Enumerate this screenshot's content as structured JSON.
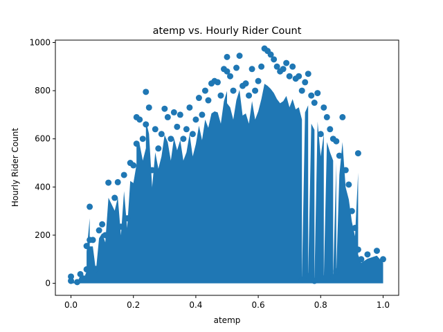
{
  "chart_data": {
    "type": "scatter",
    "title": "atemp vs. Hourly Rider Count",
    "xlabel": "atemp",
    "ylabel": "Hourly Rider Count",
    "xlim": [
      -0.05,
      1.05
    ],
    "ylim": [
      -50,
      1010
    ],
    "xticks": [
      0.0,
      0.2,
      0.4,
      0.6,
      0.8,
      1.0
    ],
    "xtick_labels": [
      "0.0",
      "0.2",
      "0.4",
      "0.6",
      "0.8",
      "1.0"
    ],
    "yticks": [
      0,
      200,
      400,
      600,
      800,
      1000
    ],
    "ytick_labels": [
      "0",
      "200",
      "400",
      "600",
      "800",
      "1000"
    ],
    "grid": false,
    "legend": "none",
    "marker_color": "#1f77b4",
    "series": [
      {
        "points": [
          [
            0.0,
            28
          ],
          [
            0.0,
            10
          ],
          [
            0.02,
            5
          ],
          [
            0.03,
            38
          ],
          [
            0.04,
            20
          ],
          [
            0.05,
            58
          ],
          [
            0.06,
            318
          ],
          [
            0.06,
            180
          ],
          [
            0.05,
            155
          ],
          [
            0.07,
            180
          ],
          [
            0.08,
            60
          ],
          [
            0.09,
            220
          ],
          [
            0.1,
            245
          ],
          [
            0.11,
            200
          ],
          [
            0.12,
            418
          ],
          [
            0.14,
            355
          ],
          [
            0.15,
            420
          ],
          [
            0.16,
            235
          ],
          [
            0.17,
            450
          ],
          [
            0.18,
            270
          ],
          [
            0.19,
            500
          ],
          [
            0.2,
            490
          ],
          [
            0.21,
            580
          ],
          [
            0.21,
            690
          ],
          [
            0.22,
            680
          ],
          [
            0.23,
            600
          ],
          [
            0.24,
            660
          ],
          [
            0.24,
            795
          ],
          [
            0.25,
            730
          ],
          [
            0.26,
            470
          ],
          [
            0.27,
            640
          ],
          [
            0.28,
            560
          ],
          [
            0.29,
            620
          ],
          [
            0.3,
            725
          ],
          [
            0.31,
            690
          ],
          [
            0.32,
            600
          ],
          [
            0.33,
            710
          ],
          [
            0.34,
            650
          ],
          [
            0.35,
            700
          ],
          [
            0.36,
            600
          ],
          [
            0.37,
            640
          ],
          [
            0.38,
            730
          ],
          [
            0.39,
            620
          ],
          [
            0.4,
            680
          ],
          [
            0.41,
            770
          ],
          [
            0.42,
            700
          ],
          [
            0.43,
            800
          ],
          [
            0.44,
            760
          ],
          [
            0.45,
            830
          ],
          [
            0.46,
            840
          ],
          [
            0.47,
            835
          ],
          [
            0.48,
            780
          ],
          [
            0.49,
            890
          ],
          [
            0.5,
            940
          ],
          [
            0.5,
            880
          ],
          [
            0.51,
            860
          ],
          [
            0.52,
            800
          ],
          [
            0.53,
            895
          ],
          [
            0.54,
            945
          ],
          [
            0.55,
            820
          ],
          [
            0.56,
            830
          ],
          [
            0.57,
            780
          ],
          [
            0.58,
            890
          ],
          [
            0.59,
            800
          ],
          [
            0.6,
            840
          ],
          [
            0.61,
            900
          ],
          [
            0.62,
            975
          ],
          [
            0.63,
            965
          ],
          [
            0.64,
            950
          ],
          [
            0.65,
            930
          ],
          [
            0.66,
            900
          ],
          [
            0.67,
            880
          ],
          [
            0.68,
            890
          ],
          [
            0.69,
            915
          ],
          [
            0.7,
            860
          ],
          [
            0.71,
            900
          ],
          [
            0.72,
            850
          ],
          [
            0.73,
            860
          ],
          [
            0.74,
            800
          ],
          [
            0.75,
            835
          ],
          [
            0.76,
            870
          ],
          [
            0.77,
            780
          ],
          [
            0.78,
            750
          ],
          [
            0.79,
            790
          ],
          [
            0.8,
            620
          ],
          [
            0.81,
            730
          ],
          [
            0.82,
            690
          ],
          [
            0.83,
            640
          ],
          [
            0.84,
            600
          ],
          [
            0.85,
            590
          ],
          [
            0.86,
            530
          ],
          [
            0.87,
            690
          ],
          [
            0.88,
            470
          ],
          [
            0.89,
            410
          ],
          [
            0.9,
            300
          ],
          [
            0.91,
            230
          ],
          [
            0.92,
            540
          ],
          [
            0.92,
            140
          ],
          [
            0.93,
            100
          ],
          [
            0.95,
            120
          ],
          [
            0.98,
            135
          ],
          [
            1.0,
            100
          ],
          [
            0.85,
            50
          ],
          [
            0.84,
            25
          ],
          [
            0.81,
            20
          ],
          [
            0.78,
            10
          ],
          [
            0.76,
            30
          ],
          [
            0.74,
            15
          ]
        ]
      }
    ]
  }
}
